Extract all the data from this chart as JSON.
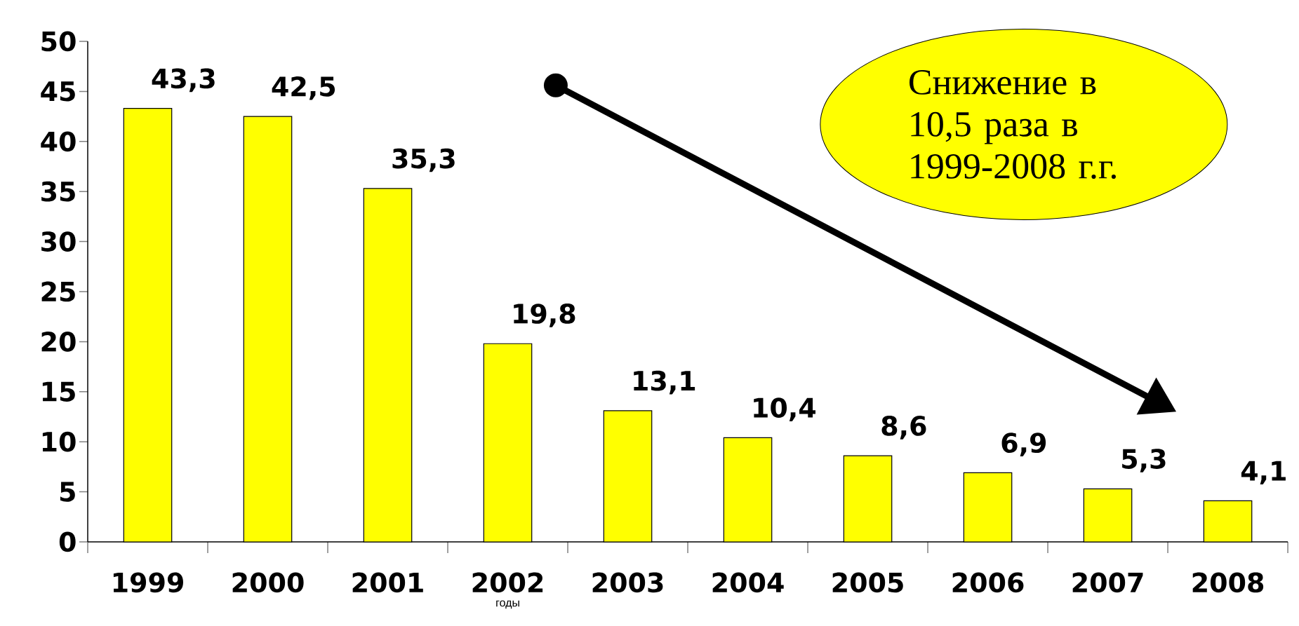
{
  "chart_data": {
    "type": "bar",
    "categories": [
      "1999",
      "2000",
      "2001",
      "2002",
      "2003",
      "2004",
      "2005",
      "2006",
      "2007",
      "2008"
    ],
    "values": [
      43.3,
      42.5,
      35.3,
      19.8,
      13.1,
      10.4,
      8.6,
      6.9,
      5.3,
      4.1
    ],
    "value_labels": [
      "43,3",
      "42,5",
      "35,3",
      "19,8",
      "13,1",
      "10,4",
      "8,6",
      "6,9",
      "5,3",
      "4,1"
    ],
    "color": "#ffff00",
    "xlabel": "годы",
    "ylim": [
      0,
      50
    ],
    "yticks": [
      0,
      5,
      10,
      15,
      20,
      25,
      30,
      35,
      40,
      45,
      50
    ],
    "annotations": [
      "Снижение в 10,5 раза в 1999-2008 г.г."
    ]
  }
}
